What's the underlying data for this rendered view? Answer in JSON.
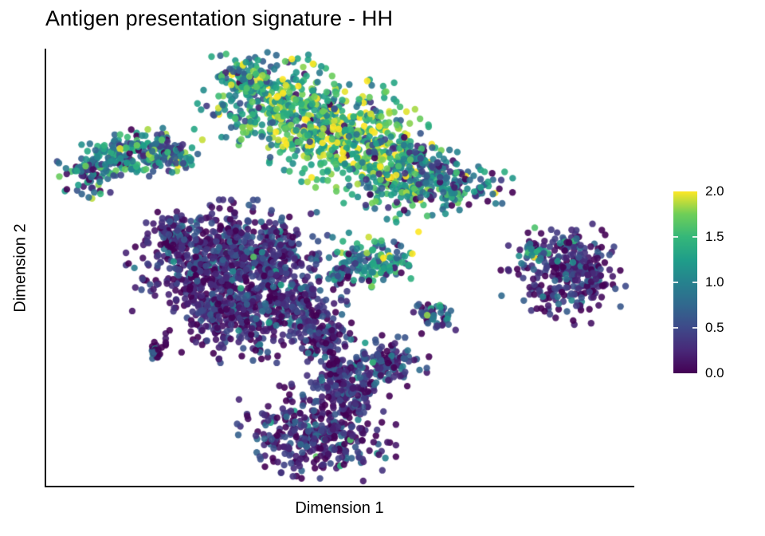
{
  "chart_data": {
    "type": "scatter",
    "title": "Antigen presentation signature - HH",
    "xlabel": "Dimension 1",
    "ylabel": "Dimension 2",
    "grid": false,
    "axis_ticks": "none",
    "legend_position": "right-colorbar",
    "point_radius": 4.2,
    "point_alpha": 0.9,
    "seed": 42,
    "colorbar": {
      "range": [
        0.0,
        2.0
      ],
      "ticks": [
        {
          "label": "2.0",
          "value": 2.0
        },
        {
          "label": "1.5",
          "value": 1.5
        },
        {
          "label": "1.0",
          "value": 1.0
        },
        {
          "label": "0.5",
          "value": 0.5
        },
        {
          "label": "0.0",
          "value": 0.0
        }
      ],
      "colormap": "viridis",
      "stops": [
        [
          0.0,
          "#440154"
        ],
        [
          0.125,
          "#482878"
        ],
        [
          0.25,
          "#3e4989"
        ],
        [
          0.375,
          "#31688e"
        ],
        [
          0.5,
          "#26828e"
        ],
        [
          0.625,
          "#1f9e89"
        ],
        [
          0.75,
          "#35b779"
        ],
        [
          0.875,
          "#6ece58"
        ],
        [
          1.0,
          "#fde725"
        ]
      ]
    },
    "clusters": [
      {
        "id": "top-wing-1",
        "x": 0.37,
        "y": 0.885,
        "sx": 0.047,
        "sy": 0.051,
        "n": 250,
        "v_mean": 1.3,
        "v_sd": 0.45,
        "out_frac": 0.08,
        "out_mean": 0.3,
        "out_sd": 0.25
      },
      {
        "id": "top-wing-2",
        "x": 0.458,
        "y": 0.839,
        "sx": 0.054,
        "sy": 0.055,
        "n": 300,
        "v_mean": 1.5,
        "v_sd": 0.4,
        "out_frac": 0.08,
        "out_mean": 0.3,
        "out_sd": 0.25
      },
      {
        "id": "top-wing-3",
        "x": 0.539,
        "y": 0.776,
        "sx": 0.054,
        "sy": 0.051,
        "n": 300,
        "v_mean": 1.6,
        "v_sd": 0.35,
        "out_frac": 0.06,
        "out_mean": 0.3,
        "out_sd": 0.25
      },
      {
        "id": "top-wing-4",
        "x": 0.611,
        "y": 0.715,
        "sx": 0.045,
        "sy": 0.044,
        "n": 200,
        "v_mean": 1.2,
        "v_sd": 0.45,
        "out_frac": 0.1,
        "out_mean": 0.3,
        "out_sd": 0.25
      },
      {
        "id": "top-wing-tail",
        "x": 0.692,
        "y": 0.684,
        "sx": 0.041,
        "sy": 0.024,
        "n": 130,
        "v_mean": 0.9,
        "v_sd": 0.5,
        "out_frac": 0.1,
        "out_mean": 0.2,
        "out_sd": 0.2
      },
      {
        "id": "top-wing-nub",
        "x": 0.332,
        "y": 0.94,
        "sx": 0.018,
        "sy": 0.016,
        "n": 45,
        "v_mean": 1.2,
        "v_sd": 0.5
      },
      {
        "id": "crescent-1",
        "x": 0.075,
        "y": 0.719,
        "sx": 0.022,
        "sy": 0.024,
        "n": 80,
        "v_mean": 0.8,
        "v_sd": 0.55
      },
      {
        "id": "crescent-2",
        "x": 0.129,
        "y": 0.754,
        "sx": 0.027,
        "sy": 0.022,
        "n": 110,
        "v_mean": 1.0,
        "v_sd": 0.55
      },
      {
        "id": "crescent-3",
        "x": 0.191,
        "y": 0.765,
        "sx": 0.026,
        "sy": 0.022,
        "n": 100,
        "v_mean": 0.9,
        "v_sd": 0.55
      },
      {
        "id": "crescent-4",
        "x": 0.229,
        "y": 0.748,
        "sx": 0.012,
        "sy": 0.016,
        "n": 40,
        "v_mean": 0.8,
        "v_sd": 0.5
      },
      {
        "id": "mid-top-small-1",
        "x": 0.63,
        "y": 0.752,
        "sx": 0.011,
        "sy": 0.011,
        "n": 28,
        "v_mean": 0.9,
        "v_sd": 0.6
      },
      {
        "id": "mid-top-small-2",
        "x": 0.667,
        "y": 0.734,
        "sx": 0.007,
        "sy": 0.007,
        "n": 10,
        "v_mean": 0.4,
        "v_sd": 0.3
      },
      {
        "id": "center-small-1",
        "x": 0.557,
        "y": 0.516,
        "sx": 0.031,
        "sy": 0.027,
        "n": 130,
        "v_mean": 1.1,
        "v_sd": 0.5
      },
      {
        "id": "center-small-2",
        "x": 0.505,
        "y": 0.493,
        "sx": 0.012,
        "sy": 0.013,
        "n": 30,
        "v_mean": 0.7,
        "v_sd": 0.5
      },
      {
        "id": "center-small-strays",
        "x": 0.454,
        "y": 0.515,
        "sx": 0.014,
        "sy": 0.009,
        "n": 6,
        "v_mean": 0.5,
        "v_sd": 0.4
      },
      {
        "id": "right-blob-1",
        "x": 0.879,
        "y": 0.493,
        "sx": 0.043,
        "sy": 0.049,
        "n": 280,
        "v_mean": 0.28,
        "v_sd": 0.3,
        "out_frac": 0.05,
        "out_mean": 1.2,
        "out_sd": 0.35
      },
      {
        "id": "right-blob-green",
        "x": 0.833,
        "y": 0.535,
        "sx": 0.012,
        "sy": 0.013,
        "n": 25,
        "v_mean": 1.1,
        "v_sd": 0.4
      },
      {
        "id": "right-blob-2",
        "x": 0.931,
        "y": 0.474,
        "sx": 0.015,
        "sy": 0.024,
        "n": 50,
        "v_mean": 0.25,
        "v_sd": 0.28
      },
      {
        "id": "central-dark-1",
        "x": 0.272,
        "y": 0.511,
        "sx": 0.054,
        "sy": 0.058,
        "n": 420,
        "v_mean": 0.22,
        "v_sd": 0.26,
        "out_frac": 0.025,
        "out_mean": 1.1,
        "out_sd": 0.3
      },
      {
        "id": "central-dark-2",
        "x": 0.367,
        "y": 0.533,
        "sx": 0.049,
        "sy": 0.049,
        "n": 330,
        "v_mean": 0.28,
        "v_sd": 0.3,
        "out_frac": 0.03,
        "out_mean": 1.1,
        "out_sd": 0.3
      },
      {
        "id": "central-dark-3",
        "x": 0.327,
        "y": 0.398,
        "sx": 0.049,
        "sy": 0.046,
        "n": 300,
        "v_mean": 0.22,
        "v_sd": 0.26,
        "out_frac": 0.02,
        "out_mean": 1.0,
        "out_sd": 0.3
      },
      {
        "id": "central-dark-4",
        "x": 0.421,
        "y": 0.416,
        "sx": 0.037,
        "sy": 0.042,
        "n": 220,
        "v_mean": 0.3,
        "v_sd": 0.3,
        "out_frac": 0.03,
        "out_mean": 1.0,
        "out_sd": 0.3
      },
      {
        "id": "central-bridge",
        "x": 0.476,
        "y": 0.338,
        "sx": 0.02,
        "sy": 0.027,
        "n": 90,
        "v_mean": 0.3,
        "v_sd": 0.3
      },
      {
        "id": "central-dark-nub",
        "x": 0.224,
        "y": 0.578,
        "sx": 0.02,
        "sy": 0.02,
        "n": 70,
        "v_mean": 0.3,
        "v_sd": 0.3
      },
      {
        "id": "small-dark-mid",
        "x": 0.661,
        "y": 0.39,
        "sx": 0.016,
        "sy": 0.016,
        "n": 55,
        "v_mean": 0.5,
        "v_sd": 0.45
      },
      {
        "id": "tiny-left",
        "x": 0.187,
        "y": 0.308,
        "sx": 0.008,
        "sy": 0.009,
        "n": 22,
        "v_mean": 0.45,
        "v_sd": 0.5
      },
      {
        "id": "bottom-1",
        "x": 0.461,
        "y": 0.117,
        "sx": 0.054,
        "sy": 0.047,
        "n": 360,
        "v_mean": 0.25,
        "v_sd": 0.3,
        "out_frac": 0.03,
        "out_mean": 1.2,
        "out_sd": 0.3
      },
      {
        "id": "bottom-2",
        "x": 0.515,
        "y": 0.215,
        "sx": 0.028,
        "sy": 0.031,
        "n": 140,
        "v_mean": 0.3,
        "v_sd": 0.3,
        "out_frac": 0.02,
        "out_mean": 1.0,
        "out_sd": 0.3
      },
      {
        "id": "bottom-3",
        "x": 0.573,
        "y": 0.281,
        "sx": 0.034,
        "sy": 0.026,
        "n": 130,
        "v_mean": 0.35,
        "v_sd": 0.35,
        "out_frac": 0.03,
        "out_mean": 1.2,
        "out_sd": 0.3
      },
      {
        "id": "bottom-neck",
        "x": 0.493,
        "y": 0.268,
        "sx": 0.011,
        "sy": 0.018,
        "n": 45,
        "v_mean": 0.3,
        "v_sd": 0.3
      },
      {
        "id": "tiny-center",
        "x": 0.359,
        "y": 0.318,
        "sx": 0.007,
        "sy": 0.007,
        "n": 8,
        "v_mean": 0.55,
        "v_sd": 0.4
      }
    ]
  }
}
